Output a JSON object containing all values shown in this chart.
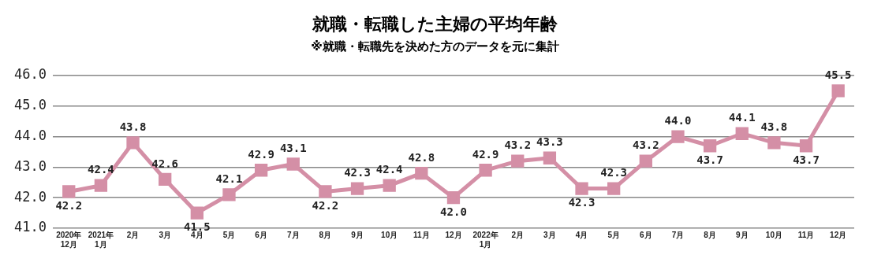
{
  "chart_data": {
    "type": "line",
    "title": "就職・転職した主婦の平均年齢",
    "subtitle": "※就職・転職先を決めた方のデータを元に集計",
    "categories": [
      "2020年\n12月",
      "2021年\n1月",
      "2月",
      "3月",
      "4月",
      "5月",
      "6月",
      "7月",
      "8月",
      "9月",
      "10月",
      "11月",
      "12月",
      "2022年\n1月",
      "2月",
      "3月",
      "4月",
      "5月",
      "6月",
      "7月",
      "8月",
      "9月",
      "10月",
      "11月",
      "12月"
    ],
    "series": [
      {
        "color": "#d48fa6",
        "values": [
          42.2,
          42.4,
          43.8,
          42.6,
          41.5,
          42.1,
          42.9,
          43.1,
          42.2,
          42.3,
          42.4,
          42.8,
          42.0,
          42.9,
          43.2,
          43.3,
          42.3,
          42.3,
          43.2,
          44.0,
          43.7,
          44.1,
          43.8,
          43.7,
          45.5
        ],
        "value_labels": [
          "42.2",
          "42.4",
          "43.8",
          "42.6",
          "41.5",
          "42.1",
          "42.9",
          "43.1",
          "42.2",
          "42.3",
          "42.4",
          "42.8",
          "42.0",
          "42.9",
          "43.2",
          "43.3",
          "42.3",
          "42.3",
          "43.2",
          "44.0",
          "43.7",
          "44.1",
          "43.8",
          "43.7",
          "45.5"
        ]
      }
    ],
    "ylim": [
      41,
      46
    ],
    "yticks": [
      {
        "value": 41,
        "label": "41.0"
      },
      {
        "value": 42,
        "label": "42.0"
      },
      {
        "value": 43,
        "label": "43.0"
      },
      {
        "value": 44,
        "label": "44.0"
      },
      {
        "value": 45,
        "label": "45.0"
      },
      {
        "value": 46,
        "label": "46.0"
      }
    ],
    "grid": "y",
    "legend": false,
    "marker": "square",
    "line_style": "solid"
  }
}
